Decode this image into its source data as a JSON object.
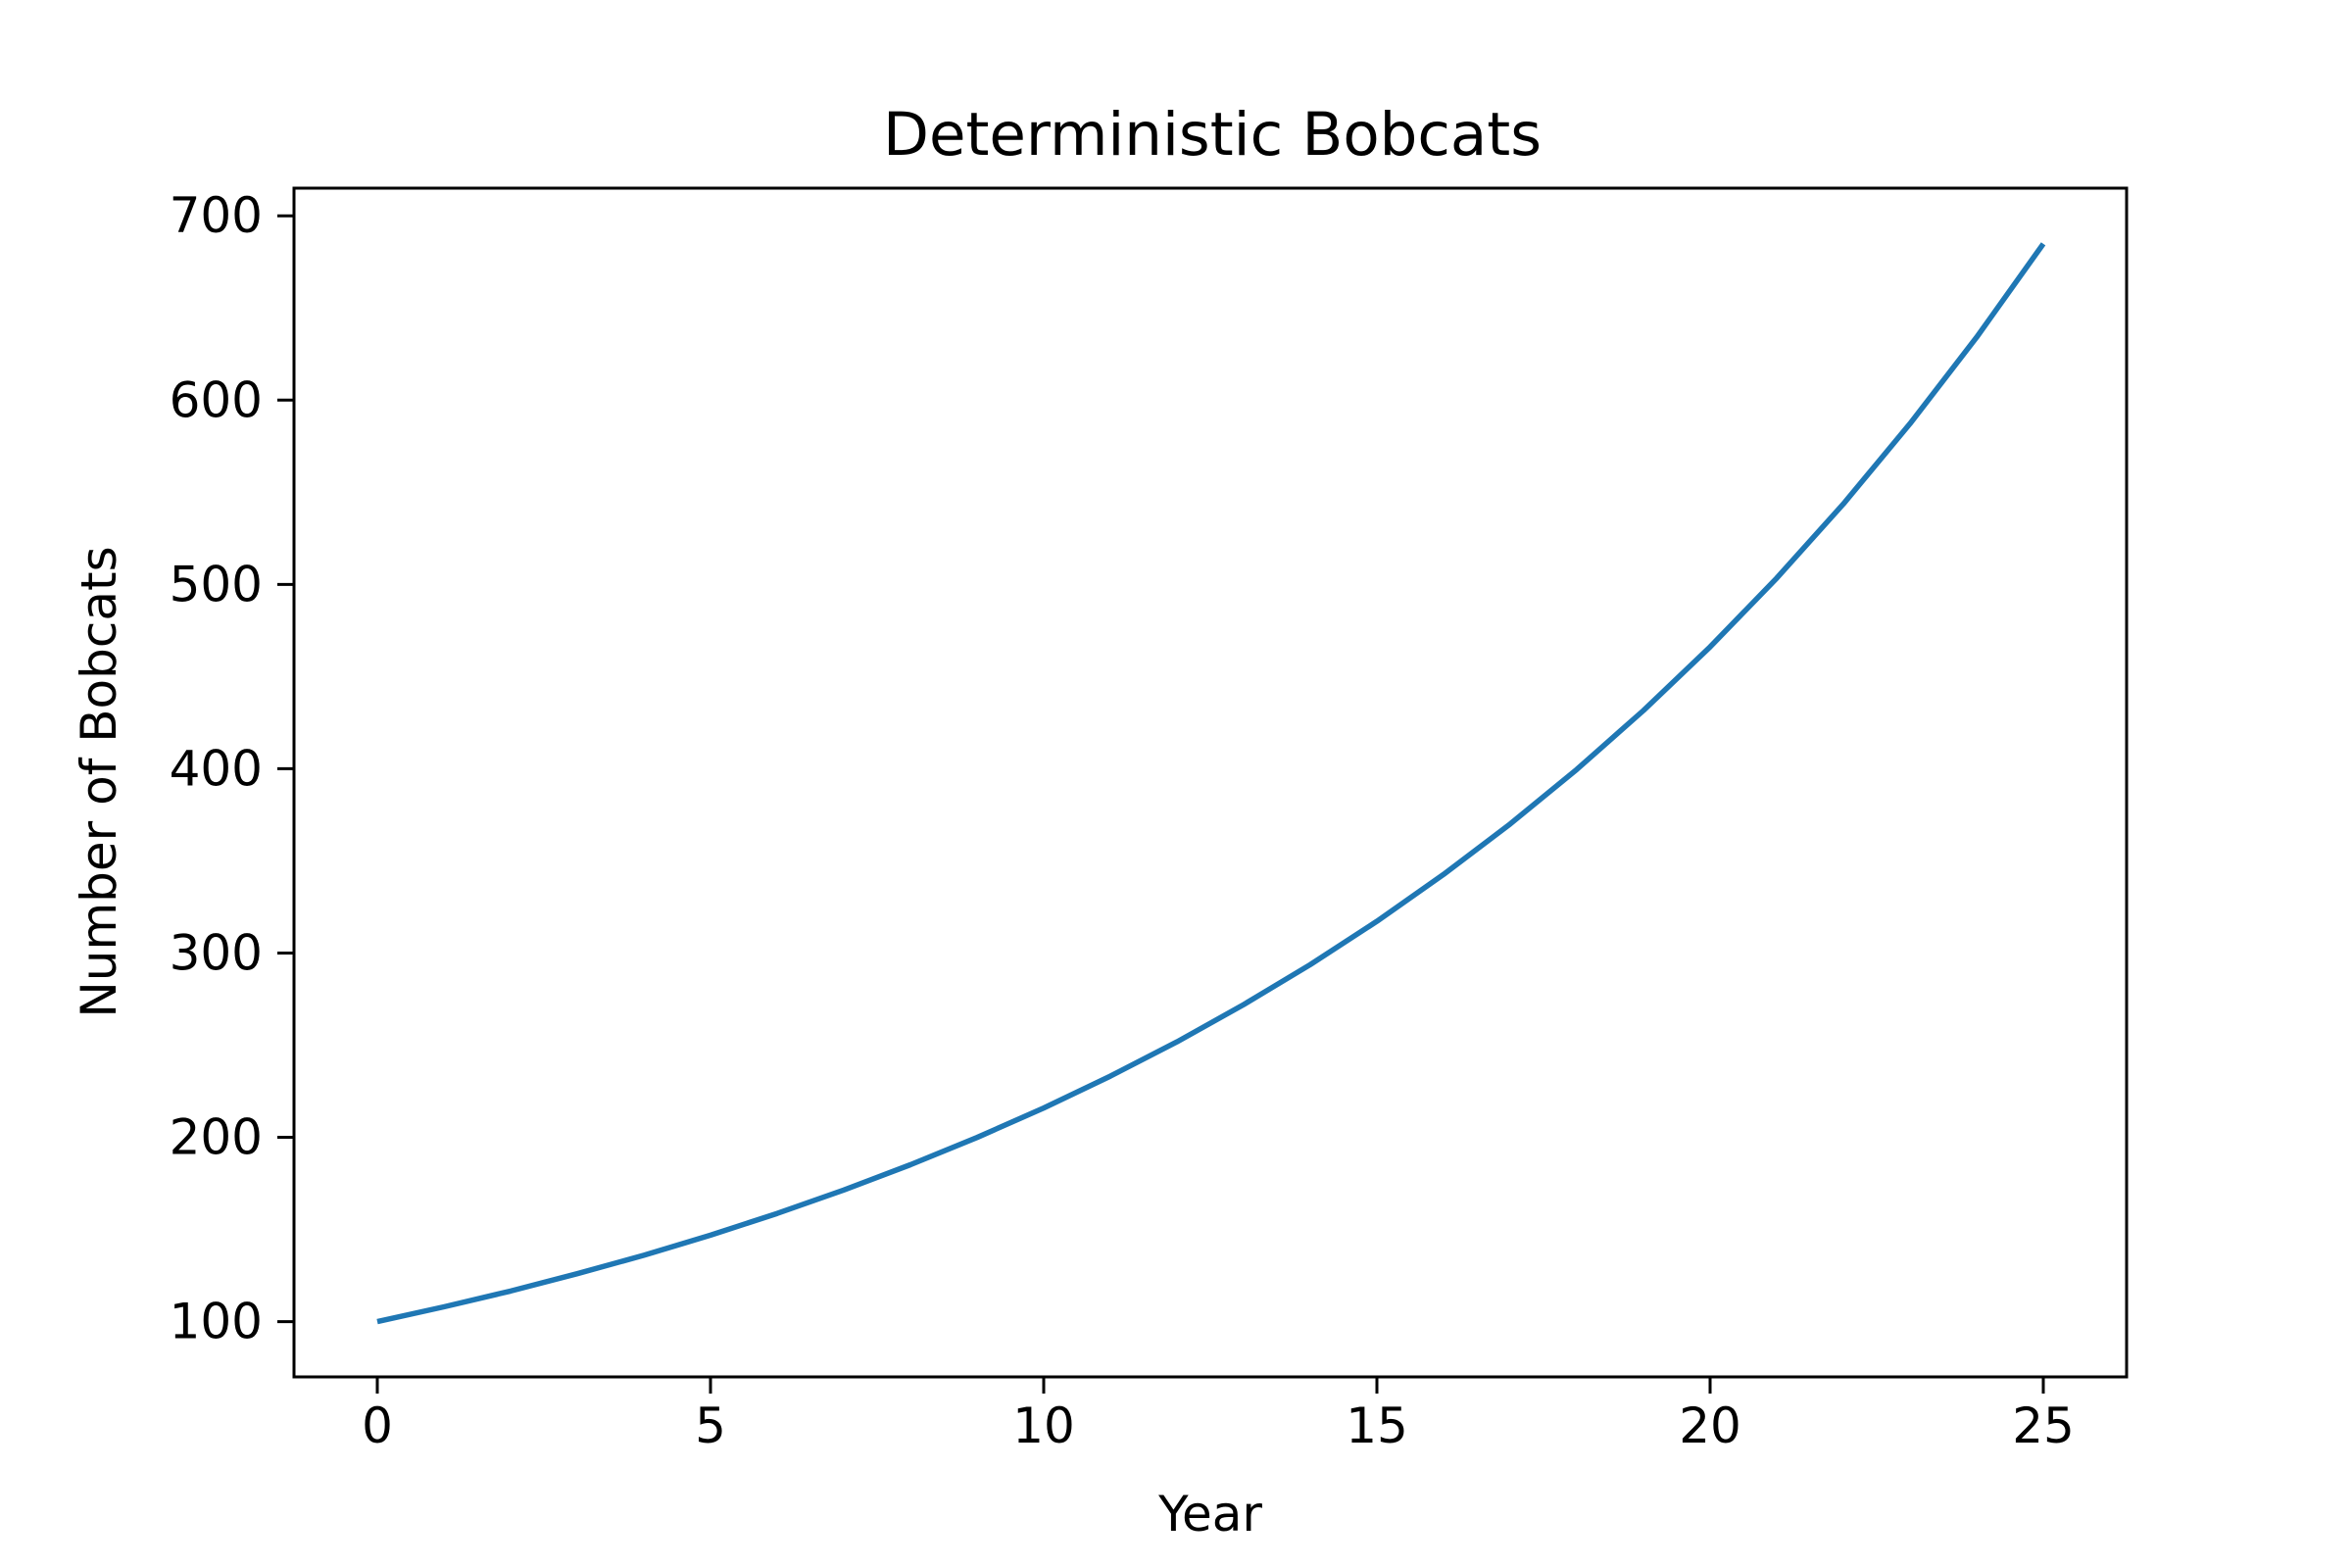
{
  "chart_data": {
    "type": "line",
    "title": "Deterministic Bobcats",
    "xlabel": "Year",
    "ylabel": "Number of Bobcats",
    "xlim": [
      -1.25,
      26.25
    ],
    "ylim": [
      70,
      715
    ],
    "xticks": [
      0,
      5,
      10,
      15,
      20,
      25
    ],
    "yticks": [
      100,
      200,
      300,
      400,
      500,
      600,
      700
    ],
    "grid": false,
    "colors": {
      "line": "#1f77b4",
      "axes": "#000000"
    },
    "series": [
      {
        "x": [
          0,
          1,
          2,
          3,
          4,
          5,
          6,
          7,
          8,
          9,
          10,
          11,
          12,
          13,
          14,
          15,
          16,
          17,
          18,
          19,
          20,
          21,
          22,
          23,
          24,
          25
        ],
        "values": [
          100.0,
          108.0,
          116.6,
          126.0,
          136.0,
          146.9,
          158.7,
          171.4,
          185.1,
          199.9,
          215.9,
          233.2,
          251.8,
          272.0,
          293.7,
          317.2,
          342.6,
          370.0,
          399.6,
          431.6,
          466.1,
          503.4,
          543.7,
          587.2,
          634.1,
          684.8
        ]
      }
    ]
  }
}
